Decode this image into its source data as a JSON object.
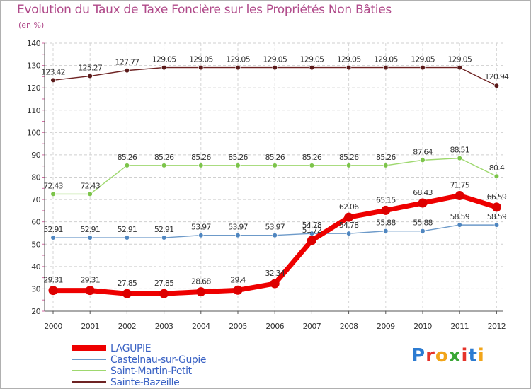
{
  "chart_data": {
    "type": "line",
    "title": "Evolution du Taux de Taxe Foncière sur les Propriétés Non Bâties",
    "ylabel": "(en %)",
    "xlabel": "",
    "categories": [
      "2000",
      "2001",
      "2002",
      "2003",
      "2004",
      "2005",
      "2006",
      "2007",
      "2008",
      "2009",
      "2010",
      "2011",
      "2012"
    ],
    "ylim": [
      20,
      140
    ],
    "yticks": [
      20,
      30,
      40,
      50,
      60,
      70,
      80,
      90,
      100,
      110,
      120,
      130,
      140
    ],
    "grid": true,
    "legend_position": "bottom-left",
    "series": [
      {
        "name": "Sainte-Bazeille",
        "color": "#6e2323",
        "marker": "#5a1a1a",
        "values": [
          123.42,
          125.27,
          127.77,
          129.05,
          129.05,
          129.05,
          129.05,
          129.05,
          129.05,
          129.05,
          129.05,
          129.05,
          120.94
        ],
        "labels": [
          "123.42",
          "125.27",
          "127.77",
          "129.05",
          "129.05",
          "129.05",
          "129.05",
          "129.05",
          "129.05",
          "129.05",
          "129.05",
          "129.05",
          "120.94"
        ]
      },
      {
        "name": "Saint-Martin-Petit",
        "color": "#9ed86e",
        "marker": "#7cc44a",
        "values": [
          72.43,
          72.43,
          85.26,
          85.26,
          85.26,
          85.26,
          85.26,
          85.26,
          85.26,
          85.26,
          87.64,
          88.51,
          80.4
        ],
        "labels": [
          "72.43",
          "72.43",
          "85.26",
          "85.26",
          "85.26",
          "85.26",
          "85.26",
          "85.26",
          "85.26",
          "85.26",
          "87.64",
          "88.51",
          "80.4"
        ]
      },
      {
        "name": "Castelnau-sur-Gupie",
        "color": "#6d9ac9",
        "marker": "#4f86c0",
        "values": [
          52.91,
          52.91,
          52.91,
          52.91,
          53.97,
          53.97,
          53.97,
          54.78,
          54.78,
          55.88,
          55.88,
          58.59,
          58.59
        ],
        "labels": [
          "52.91",
          "52.91",
          "52.91",
          "52.91",
          "53.97",
          "53.97",
          "53.97",
          "54.78",
          "54.78",
          "55.88",
          "55.88",
          "58.59",
          "58.59"
        ]
      },
      {
        "name": "LAGUPIE",
        "color": "#ee0000",
        "marker": "#dd0000",
        "values": [
          29.31,
          29.31,
          27.85,
          27.85,
          28.68,
          29.4,
          32.34,
          51.72,
          62.06,
          65.15,
          68.43,
          71.75,
          66.59
        ],
        "labels": [
          "29.31",
          "29.31",
          "27.85",
          "27.85",
          "28.68",
          "29.4",
          "32.34",
          "51.72",
          "62.06",
          "65.15",
          "68.43",
          "71.75",
          "66.59"
        ]
      }
    ],
    "legend": [
      "LAGUPIE",
      "Castelnau-sur-Gupie",
      "Saint-Martin-Petit",
      "Sainte-Bazeille"
    ]
  },
  "logo": {
    "text": "Proxiti"
  }
}
